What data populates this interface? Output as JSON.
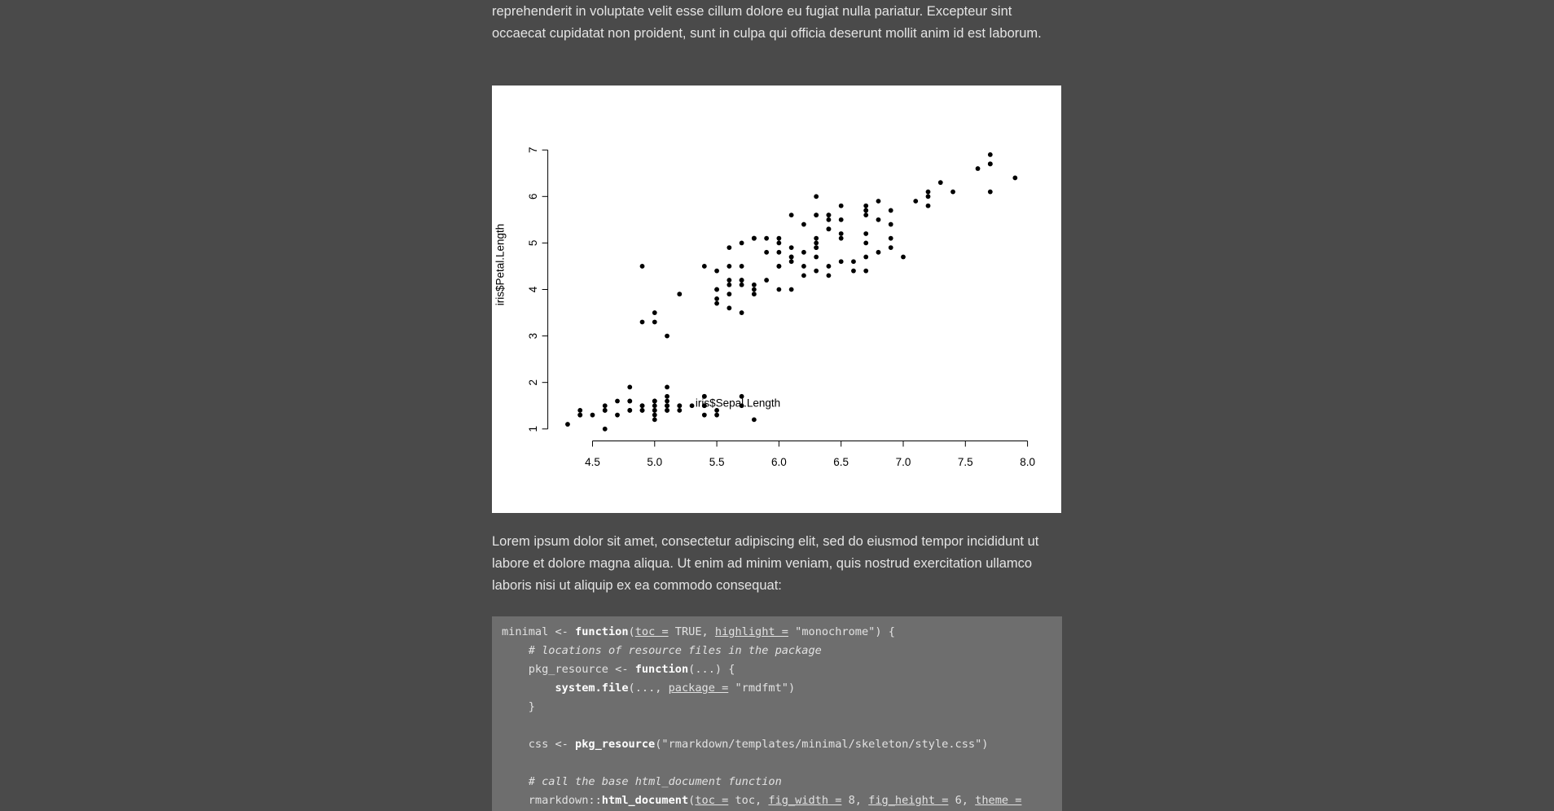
{
  "paragraphs": [
    "reprehenderit in voluptate velit esse cillum dolore eu fugiat nulla pariatur. Excepteur sint occaecat cupidatat non proident, sunt in culpa qui officia deserunt mollit anim id est laborum.",
    "Lorem ipsum dolor sit amet, consectetur adipiscing elit, sed do eiusmod tempor incididunt ut labore et dolore magna aliqua. Ut enim ad minim veniam, quis nostrud exercitation ullamco laboris nisi ut aliquip ex ea commodo consequat:"
  ],
  "chart_data": {
    "type": "scatter",
    "x_label": "iris$Sepal.Length",
    "y_label": "iris$Petal.Length",
    "color": "#000000",
    "x": [
      5.1,
      4.9,
      4.7,
      4.6,
      5.0,
      5.4,
      4.6,
      5.0,
      4.4,
      4.9,
      5.4,
      4.8,
      4.8,
      4.3,
      5.8,
      5.7,
      5.4,
      5.1,
      5.7,
      5.1,
      5.4,
      5.1,
      4.6,
      5.1,
      4.8,
      5.0,
      5.0,
      5.2,
      5.2,
      4.7,
      4.8,
      5.4,
      5.2,
      5.5,
      4.9,
      5.0,
      5.5,
      4.9,
      4.4,
      5.1,
      5.0,
      4.5,
      4.4,
      5.0,
      5.1,
      4.8,
      5.1,
      4.6,
      5.3,
      5.0,
      7.0,
      6.4,
      6.9,
      5.5,
      6.5,
      5.7,
      6.3,
      4.9,
      6.6,
      5.2,
      5.0,
      5.9,
      6.0,
      6.1,
      5.6,
      6.7,
      5.6,
      5.8,
      6.2,
      5.6,
      5.9,
      6.1,
      6.3,
      6.1,
      6.4,
      6.6,
      6.8,
      6.7,
      6.0,
      5.7,
      5.5,
      5.5,
      5.8,
      6.0,
      5.4,
      6.0,
      6.7,
      6.3,
      5.6,
      5.5,
      5.5,
      6.1,
      5.8,
      5.0,
      5.6,
      5.7,
      5.7,
      6.2,
      5.1,
      5.7,
      6.3,
      5.8,
      7.1,
      6.3,
      6.5,
      7.6,
      4.9,
      7.3,
      6.7,
      7.2,
      6.5,
      6.4,
      6.8,
      5.7,
      5.8,
      6.4,
      6.5,
      7.7,
      7.7,
      6.0,
      6.9,
      5.6,
      7.7,
      6.3,
      6.7,
      7.2,
      6.2,
      6.1,
      6.4,
      7.2,
      7.4,
      7.9,
      6.4,
      6.3,
      6.1,
      7.7,
      6.3,
      6.4,
      6.0,
      6.9,
      6.7,
      6.9,
      5.8,
      6.8,
      6.7,
      6.7,
      6.3,
      6.5,
      6.2,
      5.9
    ],
    "y": [
      1.4,
      1.4,
      1.3,
      1.5,
      1.4,
      1.7,
      1.4,
      1.5,
      1.4,
      1.5,
      1.5,
      1.6,
      1.4,
      1.1,
      1.2,
      1.5,
      1.3,
      1.4,
      1.7,
      1.5,
      1.7,
      1.5,
      1.0,
      1.7,
      1.9,
      1.6,
      1.6,
      1.5,
      1.4,
      1.6,
      1.6,
      1.5,
      1.5,
      1.4,
      1.5,
      1.2,
      1.3,
      1.4,
      1.3,
      1.5,
      1.3,
      1.3,
      1.3,
      1.6,
      1.9,
      1.4,
      1.6,
      1.4,
      1.5,
      1.4,
      4.7,
      4.5,
      4.9,
      4.0,
      4.6,
      4.5,
      4.7,
      3.3,
      4.6,
      3.9,
      3.5,
      4.2,
      4.0,
      4.7,
      3.6,
      4.4,
      4.5,
      4.1,
      4.5,
      3.9,
      4.8,
      4.0,
      4.9,
      4.7,
      4.3,
      4.4,
      4.8,
      5.0,
      4.5,
      3.5,
      3.8,
      3.7,
      3.9,
      5.1,
      4.5,
      4.5,
      4.7,
      4.4,
      4.1,
      4.0,
      4.4,
      4.6,
      4.0,
      3.3,
      4.2,
      4.2,
      4.2,
      4.3,
      3.0,
      4.1,
      6.0,
      5.1,
      5.9,
      5.6,
      5.8,
      6.6,
      4.5,
      6.3,
      5.8,
      6.1,
      5.1,
      5.3,
      5.5,
      5.0,
      5.1,
      5.3,
      5.5,
      6.7,
      6.9,
      5.0,
      5.7,
      4.9,
      6.7,
      4.9,
      5.7,
      6.0,
      4.8,
      4.9,
      5.6,
      5.8,
      6.1,
      6.4,
      5.6,
      5.1,
      5.6,
      6.1,
      5.6,
      5.5,
      4.8,
      5.4,
      5.6,
      5.1,
      5.1,
      5.9,
      5.7,
      5.2,
      5.0,
      5.2,
      5.4,
      5.1
    ],
    "xlim": [
      4.16,
      8.04
    ],
    "ylim": [
      0.76,
      7.14
    ],
    "xticks": [
      4.5,
      {
        "value": 5,
        "label": "5.0"
      },
      5.5,
      {
        "value": 6,
        "label": "6.0"
      },
      6.5,
      {
        "value": 7,
        "label": "7.0"
      },
      7.5,
      {
        "value": 8,
        "label": "8.0"
      }
    ],
    "yticks": [
      1,
      2,
      3,
      4,
      5,
      6,
      7
    ],
    "grid": false
  },
  "code": {
    "lines": [
      [
        "minimal <- ",
        {
          "text": "function",
          "style": "bold"
        },
        "(",
        {
          "text": "toc =",
          "style": "underline"
        },
        " TRUE, ",
        {
          "text": "highlight =",
          "style": "underline"
        },
        " \"monochrome\") {"
      ],
      [
        "    ",
        {
          "text": "# locations of resource files in the package",
          "style": "italic"
        }
      ],
      [
        "    pkg_resource <- ",
        {
          "text": "function",
          "style": "bold"
        },
        "(...) {"
      ],
      [
        "        ",
        {
          "text": "system.file",
          "style": "bold"
        },
        "(..., ",
        {
          "text": "package =",
          "style": "underline"
        },
        " \"rmdfmt\")"
      ],
      [
        "    }"
      ],
      [],
      [
        "    css <- ",
        {
          "text": "pkg_resource",
          "style": "bold"
        },
        "(\"rmarkdown/templates/minimal/skeleton/style.css\")"
      ],
      [],
      [
        "    ",
        {
          "text": "# call the base html_document function",
          "style": "italic"
        }
      ],
      [
        "    rmarkdown::",
        {
          "text": "html_document",
          "style": "bold"
        },
        "(",
        {
          "text": "toc =",
          "style": "underline"
        },
        " toc, ",
        {
          "text": "fig_width =",
          "style": "underline"
        },
        " 8, ",
        {
          "text": "fig_height =",
          "style": "underline"
        },
        " 6, ",
        {
          "text": "theme =",
          "style": "underline"
        }
      ]
    ]
  }
}
